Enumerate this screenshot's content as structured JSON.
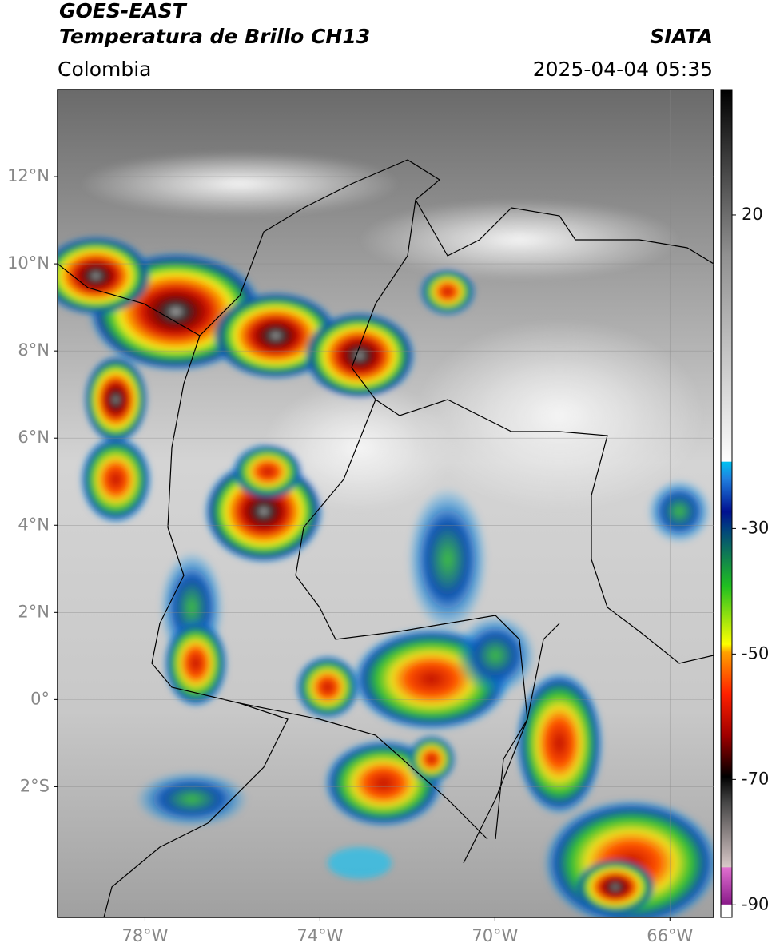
{
  "header": {
    "title": "GOES-EAST",
    "subtitle": "Temperatura de Brillo CH13",
    "source": "SIATA",
    "region": "Colombia",
    "datetime": "2025-04-04 05:35"
  },
  "map": {
    "lon_range": [
      -80,
      -65
    ],
    "lat_range": [
      -5,
      14
    ],
    "lat_ticks": [
      {
        "value": 12,
        "label": "12°N"
      },
      {
        "value": 10,
        "label": "10°N"
      },
      {
        "value": 8,
        "label": "8°N"
      },
      {
        "value": 6,
        "label": "6°N"
      },
      {
        "value": 4,
        "label": "4°N"
      },
      {
        "value": 2,
        "label": "2°N"
      },
      {
        "value": 0,
        "label": "0°"
      },
      {
        "value": -2,
        "label": "2°S"
      }
    ],
    "lon_ticks": [
      {
        "value": -78,
        "label": "78°W"
      },
      {
        "value": -74,
        "label": "74°W"
      },
      {
        "value": -70,
        "label": "70°W"
      },
      {
        "value": -66,
        "label": "66°W"
      }
    ]
  },
  "colorbar": {
    "range": [
      -92,
      40
    ],
    "ticks": [
      20,
      -30,
      -50,
      -70,
      -90
    ]
  }
}
